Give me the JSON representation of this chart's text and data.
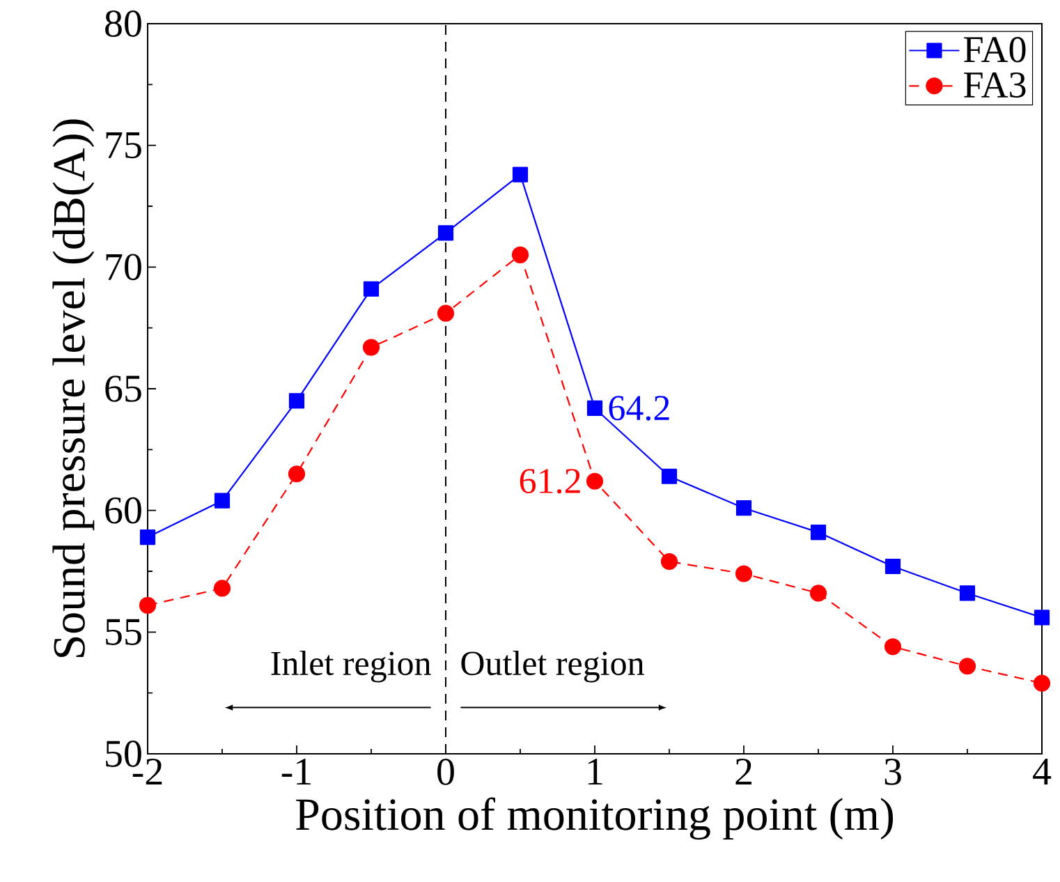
{
  "chart_data": {
    "type": "line",
    "xlabel": "Position of monitoring point (m)",
    "ylabel": "Sound pressure level (dB(A))",
    "x": [
      -2,
      -1.5,
      -1,
      -0.5,
      0,
      0.5,
      1,
      1.5,
      2,
      2.5,
      3,
      3.5,
      4
    ],
    "series": [
      {
        "name": "FA0",
        "color": "#0000ff",
        "marker": "square",
        "line_style": "solid",
        "values": [
          58.9,
          60.4,
          64.5,
          69.1,
          71.4,
          73.8,
          64.2,
          61.4,
          60.1,
          59.1,
          57.7,
          56.6,
          55.6
        ],
        "value_labels": [
          null,
          null,
          null,
          null,
          null,
          null,
          "64.2",
          null,
          null,
          null,
          null,
          null,
          null
        ]
      },
      {
        "name": "FA3",
        "color": "#ff0000",
        "marker": "circle",
        "line_style": "dashed",
        "values": [
          56.1,
          56.8,
          61.5,
          66.7,
          68.1,
          70.5,
          61.2,
          57.9,
          57.4,
          56.6,
          54.4,
          53.6,
          52.9
        ],
        "value_labels": [
          null,
          null,
          null,
          null,
          null,
          null,
          "61.2",
          null,
          null,
          null,
          null,
          null,
          null
        ]
      }
    ],
    "xlim": [
      -2,
      4
    ],
    "xticks": [
      -2,
      -1,
      0,
      1,
      2,
      3,
      4
    ],
    "ylim": [
      50,
      80
    ],
    "yticks": [
      50,
      55,
      60,
      65,
      70,
      75,
      80
    ],
    "ref_lines": [
      {
        "axis": "x",
        "value": 0,
        "color": "#000000",
        "line_style": "dashed"
      }
    ],
    "annotations": [
      "Inlet region",
      "Outlet region"
    ],
    "legend": "top right",
    "grid": false
  }
}
